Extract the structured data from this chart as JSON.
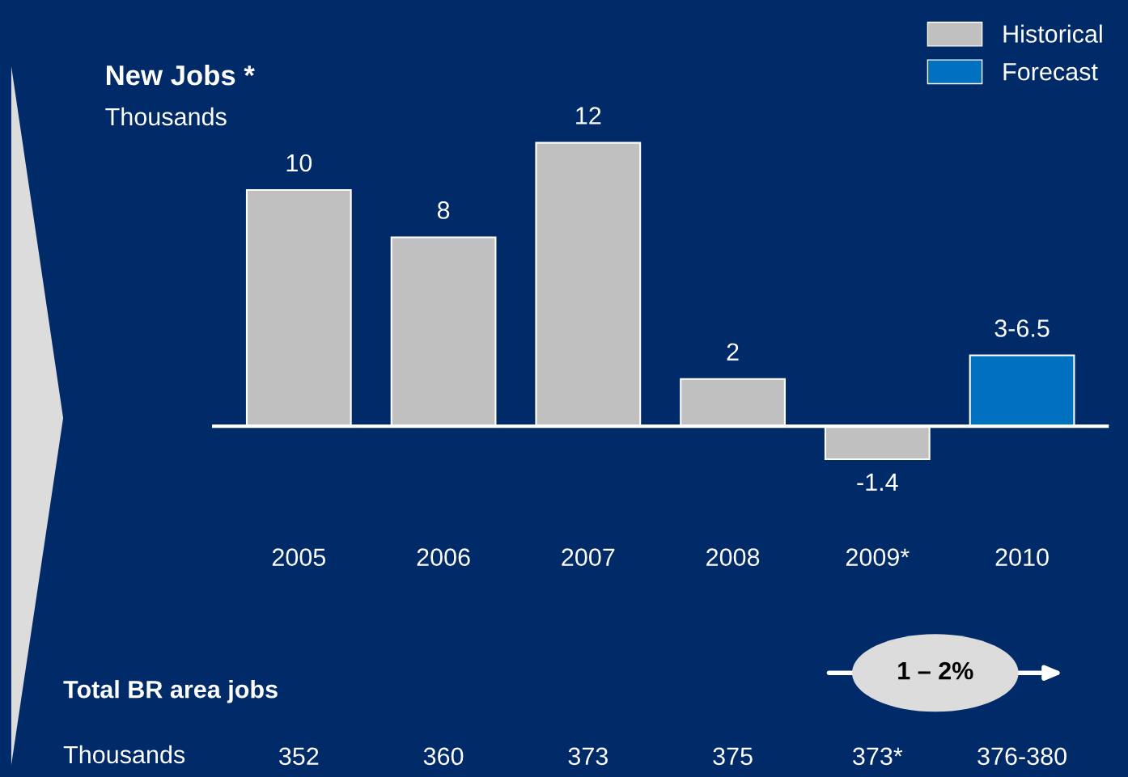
{
  "chart_data": [
    {
      "type": "bar",
      "title": "New Jobs *",
      "subtitle": "Thousands",
      "categories": [
        "2005",
        "2006",
        "2007",
        "2008",
        "2009*",
        "2010"
      ],
      "series": [
        {
          "name": "Historical",
          "color": "#c0c0c0",
          "values": [
            10,
            8,
            12,
            2,
            -1.4,
            null
          ],
          "value_labels": [
            "10",
            "8",
            "12",
            "2",
            "-1.4",
            null
          ]
        },
        {
          "name": "Forecast",
          "color": "#0070c0",
          "values": [
            null,
            null,
            null,
            null,
            null,
            3
          ],
          "value_labels": [
            null,
            null,
            null,
            null,
            null,
            "3-6.5"
          ]
        }
      ],
      "legend": "top right",
      "tick_labels": "x",
      "grid": false
    },
    {
      "type": "other",
      "title": "Total BR area jobs",
      "subtitle": "Thousands",
      "categories": [
        null,
        null,
        null,
        null,
        null,
        null
      ],
      "value_labels": [
        "352",
        "360",
        "373",
        "375",
        "373*",
        "376-380"
      ],
      "annotations": [
        "1 – 2%"
      ]
    }
  ]
}
